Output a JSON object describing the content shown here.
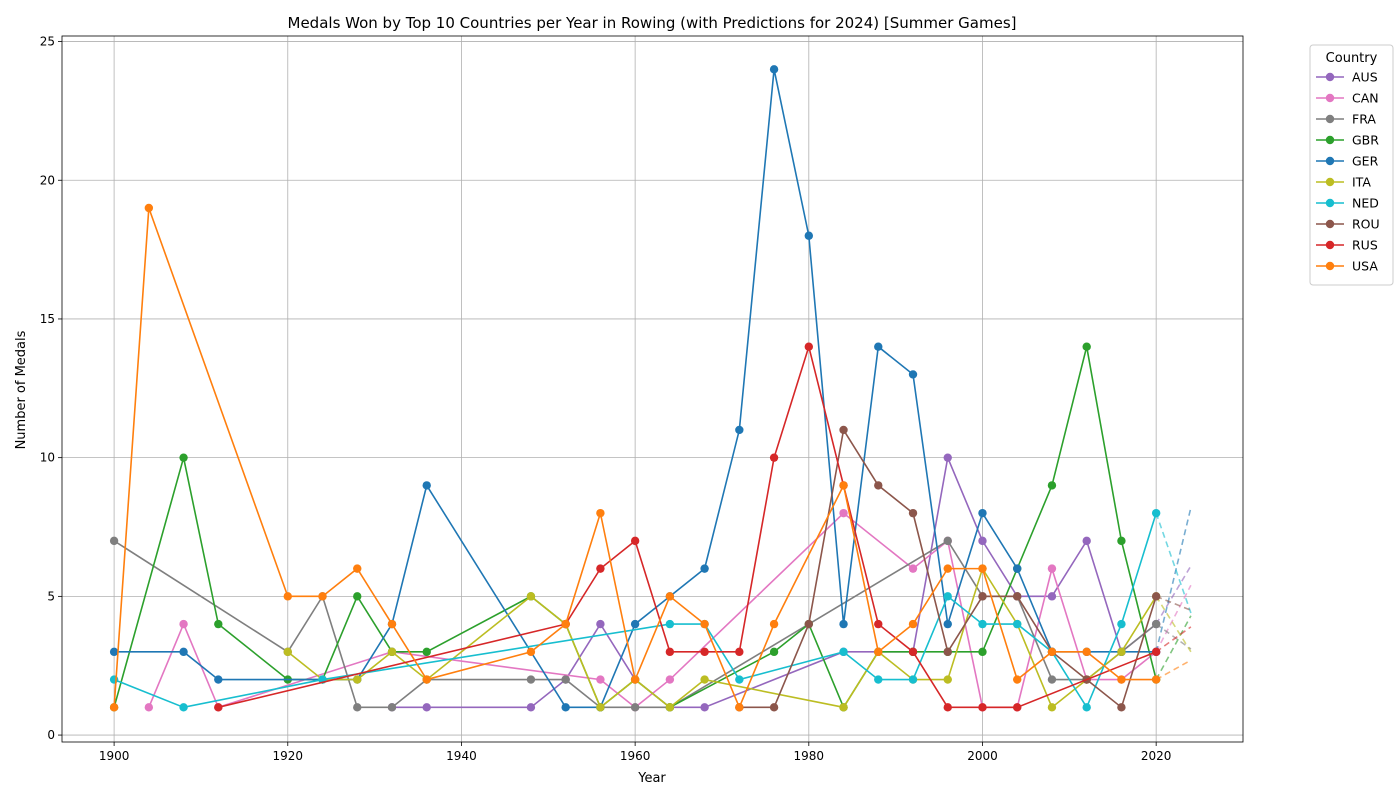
{
  "chart_data": {
    "type": "line",
    "title": "Medals Won by Top 10 Countries per Year in Rowing (with Predictions for 2024) [Summer Games]",
    "xlabel": "Year",
    "ylabel": "Number of Medals",
    "xlim": [
      1894,
      2030
    ],
    "ylim": [
      -0.25,
      25.2
    ],
    "xticks": [
      1900,
      1920,
      1940,
      1960,
      1980,
      2000,
      2020
    ],
    "yticks": [
      0,
      5,
      10,
      15,
      20,
      25
    ],
    "grid": true,
    "legend": {
      "title": "Country",
      "placement": "outside top-right"
    },
    "prediction_year": 2024,
    "series": [
      {
        "name": "AUS",
        "color": "#9467bd",
        "points": [
          [
            1932,
            1
          ],
          [
            1936,
            1
          ],
          [
            1948,
            1
          ],
          [
            1952,
            2
          ],
          [
            1956,
            4
          ],
          [
            1960,
            2
          ],
          [
            1964,
            1
          ],
          [
            1968,
            1
          ],
          [
            1984,
            3
          ],
          [
            1988,
            3
          ],
          [
            1992,
            3
          ],
          [
            1996,
            10
          ],
          [
            2000,
            7
          ],
          [
            2004,
            5
          ],
          [
            2008,
            5
          ],
          [
            2012,
            7
          ],
          [
            2016,
            3
          ],
          [
            2020,
            4
          ]
        ],
        "prediction": 6.1
      },
      {
        "name": "CAN",
        "color": "#e377c2",
        "points": [
          [
            1904,
            1
          ],
          [
            1908,
            4
          ],
          [
            1912,
            1
          ],
          [
            1932,
            3
          ],
          [
            1956,
            2
          ],
          [
            1960,
            1
          ],
          [
            1964,
            2
          ],
          [
            1984,
            8
          ],
          [
            1992,
            6
          ],
          [
            1996,
            7
          ],
          [
            2000,
            1
          ],
          [
            2004,
            1
          ],
          [
            2008,
            6
          ],
          [
            2012,
            2
          ],
          [
            2016,
            2
          ],
          [
            2020,
            3
          ]
        ],
        "prediction": 5.4
      },
      {
        "name": "FRA",
        "color": "#7f7f7f",
        "points": [
          [
            1900,
            7
          ],
          [
            1920,
            3
          ],
          [
            1924,
            5
          ],
          [
            1928,
            1
          ],
          [
            1932,
            1
          ],
          [
            1936,
            2
          ],
          [
            1948,
            2
          ],
          [
            1952,
            2
          ],
          [
            1956,
            1
          ],
          [
            1960,
            1
          ],
          [
            1964,
            1
          ],
          [
            1996,
            7
          ],
          [
            2000,
            5
          ],
          [
            2004,
            5
          ],
          [
            2008,
            2
          ],
          [
            2012,
            2
          ],
          [
            2016,
            3
          ],
          [
            2020,
            4
          ]
        ],
        "prediction": 3.1
      },
      {
        "name": "GBR",
        "color": "#2ca02c",
        "points": [
          [
            1900,
            1
          ],
          [
            1908,
            10
          ],
          [
            1912,
            4
          ],
          [
            1920,
            2
          ],
          [
            1924,
            2
          ],
          [
            1928,
            5
          ],
          [
            1932,
            3
          ],
          [
            1936,
            3
          ],
          [
            1948,
            5
          ],
          [
            1952,
            4
          ],
          [
            1956,
            1
          ],
          [
            1960,
            2
          ],
          [
            1964,
            1
          ],
          [
            1976,
            3
          ],
          [
            1980,
            4
          ],
          [
            1984,
            1
          ],
          [
            1988,
            3
          ],
          [
            1992,
            3
          ],
          [
            1996,
            3
          ],
          [
            2000,
            3
          ],
          [
            2004,
            6
          ],
          [
            2008,
            9
          ],
          [
            2012,
            14
          ],
          [
            2016,
            7
          ],
          [
            2020,
            2
          ]
        ],
        "prediction": 4.3
      },
      {
        "name": "GER",
        "color": "#1f77b4",
        "points": [
          [
            1900,
            3
          ],
          [
            1908,
            3
          ],
          [
            1912,
            2
          ],
          [
            1928,
            2
          ],
          [
            1932,
            4
          ],
          [
            1936,
            9
          ],
          [
            1952,
            1
          ],
          [
            1956,
            1
          ],
          [
            1960,
            4
          ],
          [
            1964,
            5
          ],
          [
            1968,
            6
          ],
          [
            1972,
            11
          ],
          [
            1976,
            24
          ],
          [
            1980,
            18
          ],
          [
            1984,
            4
          ],
          [
            1988,
            14
          ],
          [
            1992,
            13
          ],
          [
            1996,
            4
          ],
          [
            2000,
            8
          ],
          [
            2004,
            6
          ],
          [
            2008,
            3
          ],
          [
            2012,
            3
          ],
          [
            2016,
            3
          ],
          [
            2020,
            3
          ]
        ],
        "prediction": 8.2
      },
      {
        "name": "ITA",
        "color": "#bcbd22",
        "points": [
          [
            1920,
            3
          ],
          [
            1924,
            2
          ],
          [
            1928,
            2
          ],
          [
            1932,
            3
          ],
          [
            1936,
            2
          ],
          [
            1948,
            5
          ],
          [
            1952,
            4
          ],
          [
            1956,
            1
          ],
          [
            1960,
            2
          ],
          [
            1964,
            1
          ],
          [
            1968,
            2
          ],
          [
            1984,
            1
          ],
          [
            1988,
            3
          ],
          [
            1992,
            2
          ],
          [
            1996,
            2
          ],
          [
            2000,
            6
          ],
          [
            2004,
            4
          ],
          [
            2008,
            1
          ],
          [
            2012,
            2
          ],
          [
            2016,
            3
          ],
          [
            2020,
            5
          ]
        ],
        "prediction": 3.0
      },
      {
        "name": "NED",
        "color": "#17becf",
        "points": [
          [
            1900,
            2
          ],
          [
            1908,
            1
          ],
          [
            1924,
            2
          ],
          [
            1964,
            4
          ],
          [
            1968,
            4
          ],
          [
            1972,
            2
          ],
          [
            1984,
            3
          ],
          [
            1988,
            2
          ],
          [
            1992,
            2
          ],
          [
            1996,
            5
          ],
          [
            2000,
            4
          ],
          [
            2004,
            4
          ],
          [
            2008,
            3
          ],
          [
            2012,
            1
          ],
          [
            2016,
            4
          ],
          [
            2020,
            8
          ]
        ],
        "prediction": 4.4
      },
      {
        "name": "ROU",
        "color": "#8c564b",
        "points": [
          [
            1972,
            1
          ],
          [
            1976,
            1
          ],
          [
            1980,
            4
          ],
          [
            1984,
            11
          ],
          [
            1988,
            9
          ],
          [
            1992,
            8
          ],
          [
            1996,
            3
          ],
          [
            2000,
            5
          ],
          [
            2004,
            5
          ],
          [
            2008,
            3
          ],
          [
            2012,
            2
          ],
          [
            2016,
            1
          ],
          [
            2020,
            5
          ]
        ],
        "prediction": 4.5
      },
      {
        "name": "RUS",
        "color": "#d62728",
        "points": [
          [
            1912,
            1
          ],
          [
            1952,
            4
          ],
          [
            1956,
            6
          ],
          [
            1960,
            7
          ],
          [
            1964,
            3
          ],
          [
            1968,
            3
          ],
          [
            1972,
            3
          ],
          [
            1976,
            10
          ],
          [
            1980,
            14
          ],
          [
            1984,
            9
          ],
          [
            1988,
            4
          ],
          [
            1992,
            3
          ],
          [
            1996,
            1
          ],
          [
            2000,
            1
          ],
          [
            2004,
            1
          ],
          [
            2020,
            3
          ]
        ],
        "prediction": 3.9
      },
      {
        "name": "USA",
        "color": "#ff7f0e",
        "points": [
          [
            1900,
            1
          ],
          [
            1904,
            19
          ],
          [
            1920,
            5
          ],
          [
            1924,
            5
          ],
          [
            1928,
            6
          ],
          [
            1932,
            4
          ],
          [
            1936,
            2
          ],
          [
            1948,
            3
          ],
          [
            1952,
            4
          ],
          [
            1956,
            8
          ],
          [
            1960,
            2
          ],
          [
            1964,
            5
          ],
          [
            1968,
            4
          ],
          [
            1972,
            1
          ],
          [
            1976,
            4
          ],
          [
            1984,
            9
          ],
          [
            1988,
            3
          ],
          [
            1992,
            4
          ],
          [
            1996,
            6
          ],
          [
            2000,
            6
          ],
          [
            2004,
            2
          ],
          [
            2008,
            3
          ],
          [
            2012,
            3
          ],
          [
            2016,
            2
          ],
          [
            2020,
            2
          ]
        ],
        "prediction": 2.7
      }
    ]
  }
}
